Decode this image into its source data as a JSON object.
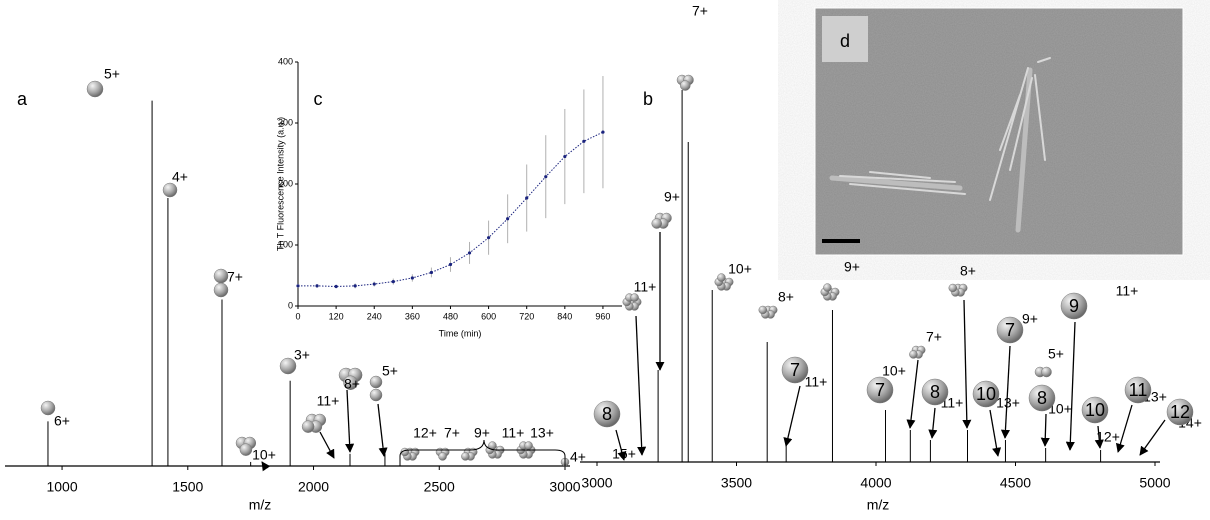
{
  "chart_data": [
    {
      "type": "spectrum",
      "label": "a",
      "x_label": "m/z",
      "color": "#000000",
      "xlim": [
        793,
        3000
      ],
      "xticks": [
        1000,
        1500,
        2000,
        2500,
        3000
      ],
      "ylim": [
        0,
        100
      ],
      "x": [
        944,
        1358,
        1421,
        1636,
        1750,
        1907,
        2145,
        2284
      ],
      "values": [
        11,
        90,
        66,
        41,
        1,
        21,
        3,
        3
      ],
      "annotations": [
        "6+",
        "5+",
        "4+",
        "7+",
        "10+",
        "3+",
        "11+",
        "8+",
        "5+",
        "12+",
        "7+",
        "9+",
        "11+",
        "13+",
        "4+"
      ]
    },
    {
      "type": "spectrum",
      "label": "b",
      "x_label": "m/z",
      "color": "#000000",
      "xlim": [
        3000,
        5000
      ],
      "xticks": [
        3000,
        3500,
        4000,
        4500,
        5000
      ],
      "ylim": [
        0,
        100
      ],
      "x": [
        3219,
        3305,
        3327,
        3413,
        3610,
        3678,
        3844,
        4034,
        4123,
        4195,
        4328,
        4464,
        4608,
        4805
      ],
      "values": [
        23,
        93,
        80,
        43,
        30,
        4,
        38,
        13,
        8,
        5.5,
        8,
        5.5,
        3.5,
        3
      ],
      "annotations": [
        "7+",
        "9+",
        "11+",
        "10+",
        "8+",
        "9+",
        "11+",
        "15+",
        "8+",
        "7+",
        "10+",
        "11+",
        "13+",
        "9+",
        "5+",
        "10+",
        "12+",
        "11+",
        "13+",
        "14+"
      ],
      "oligomer_labels": [
        "8",
        "7",
        "7",
        "8",
        "10",
        "7",
        "9",
        "8",
        "10",
        "11",
        "12"
      ]
    },
    {
      "type": "line",
      "label": "c",
      "x_label": "Time (min)",
      "y_label": "Th T Fluorescence Intensity (a.u.)",
      "xlim": [
        0,
        1020
      ],
      "xticks": [
        0,
        120,
        240,
        360,
        480,
        600,
        720,
        840,
        960
      ],
      "ylim": [
        0,
        400
      ],
      "yticks": [
        0,
        100,
        200,
        300,
        400
      ],
      "x": [
        0,
        60,
        120,
        180,
        240,
        300,
        360,
        420,
        480,
        540,
        600,
        660,
        720,
        780,
        840,
        900,
        960
      ],
      "series": [
        {
          "color": "#1a237e",
          "error_color": "#b0b0b0",
          "values": [
            33,
            33,
            32,
            33,
            36,
            40,
            46,
            55,
            68,
            87,
            112,
            143,
            177,
            212,
            245,
            270,
            285
          ],
          "errors": [
            3,
            3,
            3,
            4,
            4,
            5,
            6,
            8,
            12,
            18,
            28,
            40,
            55,
            68,
            78,
            85,
            92
          ]
        }
      ]
    },
    {
      "type": "image",
      "label": "d"
    }
  ]
}
